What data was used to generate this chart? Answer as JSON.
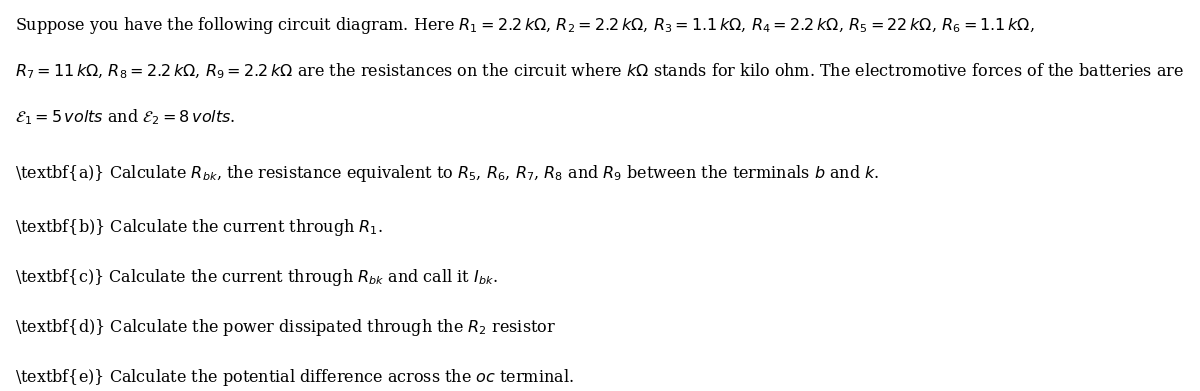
{
  "bg_color": "#ffffff",
  "text_color": "#000000",
  "fig_width": 12.0,
  "fig_height": 3.91,
  "intro_line1": "Suppose you have the following circuit diagram. Here $R_1 = 2.2\\, k\\Omega$, $R_2 = 2.2\\, k\\Omega$, $R_3 = 1.1\\, k\\Omega$, $R_4 = 2.2\\, k\\Omega$, $R_5 = 22\\, k\\Omega$, $R_6 = 1.1\\, k\\Omega$,",
  "intro_line2": "$R_7 = 11\\, k\\Omega$, $R_8 = 2.2\\, k\\Omega$, $R_9 = 2.2\\, k\\Omega$ are the resistances on the circuit where $k\\Omega$ stands for kilo ohm. The electromotive forces of the batteries are",
  "intro_line3": "$\\mathcal{E}_1 = 5\\, volts$ and $\\mathcal{E}_2 = 8\\, volts$.",
  "question_a": "\\textbf{a)} Calculate $R_{bk}$, the resistance equivalent to $R_5$, $R_6$, $R_7$, $R_8$ and $R_9$ between the terminals $b$ and $k$.",
  "question_b": "\\textbf{b)} Calculate the current through $R_1$.",
  "question_c": "\\textbf{c)} Calculate the current through $R_{bk}$ and call it $I_{bk}$.",
  "question_d": "\\textbf{d)} Calculate the power dissipated through the $R_2$ resistor",
  "question_e": "\\textbf{e)} Calculate the potential difference across the $oc$ terminal.",
  "fontsize": 11.5
}
